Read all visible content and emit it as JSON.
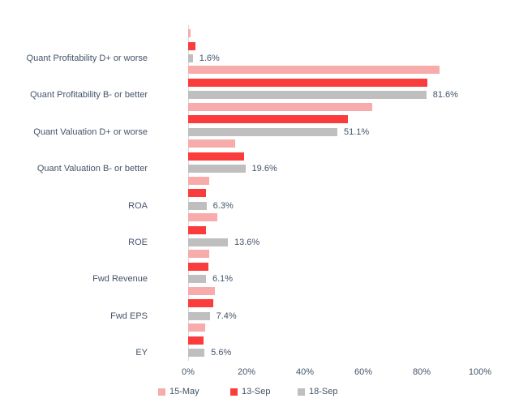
{
  "chart_data": {
    "type": "bar",
    "orientation": "horizontal",
    "title": "",
    "xlabel": "",
    "ylabel": "",
    "background": "#FFFFFF",
    "text_color": "#44546A",
    "axis_line_color": "#D9D9D9",
    "grid": false,
    "categories": [
      "Quant Profitability D+ or worse",
      "Quant Profitability B- or better",
      "Quant Valuation D+ or worse",
      "Quant Valuation B- or better",
      "ROA",
      "ROE",
      "Fwd Revenue",
      "Fwd EPS",
      "EY"
    ],
    "series": [
      {
        "name": "15-May",
        "color": "#F8ABAB",
        "values": [
          0.9,
          86.0,
          63.0,
          16.0,
          7.2,
          9.9,
          7.2,
          9.1,
          5.7
        ]
      },
      {
        "name": "13-Sep",
        "color": "#FB3C3C",
        "values": [
          2.4,
          81.9,
          54.8,
          19.3,
          6.1,
          6.0,
          6.9,
          8.6,
          5.4
        ]
      },
      {
        "name": "18-Sep",
        "color": "#BFBFBF",
        "values": [
          1.6,
          81.6,
          51.1,
          19.6,
          6.3,
          13.6,
          6.1,
          7.4,
          5.6
        ],
        "data_labels": [
          "1.6%",
          "81.6%",
          "51.1%",
          "19.6%",
          "6.3%",
          "13.6%",
          "6.1%",
          "7.4%",
          "5.6%"
        ]
      }
    ],
    "x_axis": {
      "min": 0,
      "max": 100,
      "ticks": [
        "0%",
        "20%",
        "40%",
        "60%",
        "80%",
        "100%"
      ]
    },
    "legend": {
      "position": "bottom",
      "entries": [
        "15-May",
        "13-Sep",
        "18-Sep"
      ]
    }
  }
}
